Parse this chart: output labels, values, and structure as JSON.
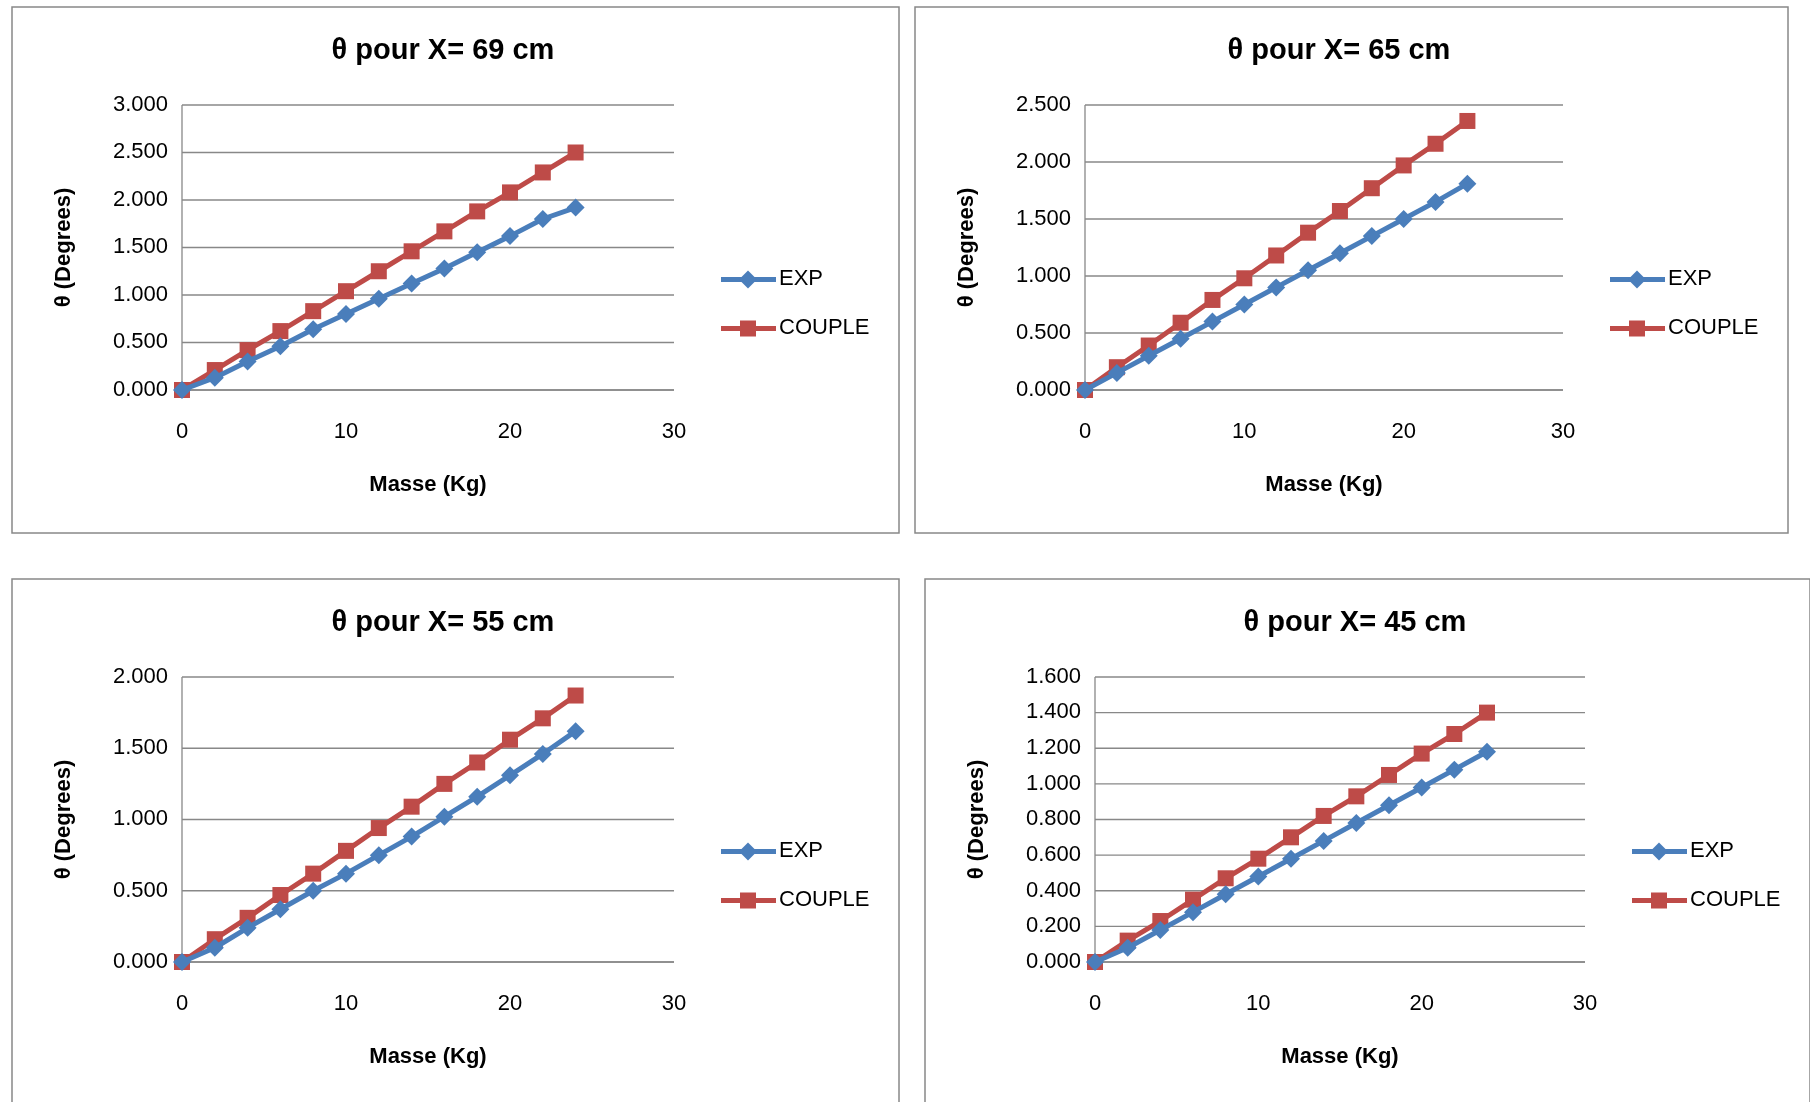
{
  "chart_data": [
    {
      "type": "line",
      "title": "θ pour X= 69 cm",
      "xlabel": "Masse (Kg)",
      "ylabel": "θ (Degrees)",
      "x": [
        0,
        2,
        4,
        6,
        8,
        10,
        12,
        14,
        16,
        18,
        20,
        22,
        24
      ],
      "xlim": [
        0,
        30
      ],
      "xticks": [
        0,
        10,
        20,
        30
      ],
      "ylim": [
        0,
        3
      ],
      "yticks": [
        {
          "value": 0,
          "label": "0.000"
        },
        {
          "value": 0.5,
          "label": "0.500"
        },
        {
          "value": 1,
          "label": "1.000"
        },
        {
          "value": 1.5,
          "label": "1.500"
        },
        {
          "value": 2,
          "label": "2.000"
        },
        {
          "value": 2.5,
          "label": "2.500"
        },
        {
          "value": 3,
          "label": "3.000"
        }
      ],
      "grid": "y",
      "legend": "right",
      "line_style": "solid",
      "series": [
        {
          "name": "EXP",
          "color": "#4a7ebb",
          "marker": "diamond",
          "values": [
            0,
            0.13,
            0.3,
            0.46,
            0.64,
            0.8,
            0.96,
            1.12,
            1.28,
            1.45,
            1.62,
            1.8,
            1.92
          ]
        },
        {
          "name": "COUPLE",
          "color": "#be4b48",
          "marker": "square",
          "values": [
            0,
            0.21,
            0.42,
            0.62,
            0.83,
            1.04,
            1.25,
            1.46,
            1.67,
            1.88,
            2.08,
            2.29,
            2.5
          ]
        }
      ]
    },
    {
      "type": "line",
      "title": "θ pour X= 65 cm",
      "xlabel": "Masse (Kg)",
      "ylabel": "θ (Degrees)",
      "x": [
        0,
        2,
        4,
        6,
        8,
        10,
        12,
        14,
        16,
        18,
        20,
        22,
        24
      ],
      "xlim": [
        0,
        30
      ],
      "xticks": [
        0,
        10,
        20,
        30
      ],
      "ylim": [
        0,
        2.5
      ],
      "yticks": [
        {
          "value": 0,
          "label": "0.000"
        },
        {
          "value": 0.5,
          "label": "0.500"
        },
        {
          "value": 1,
          "label": "1.000"
        },
        {
          "value": 1.5,
          "label": "1.500"
        },
        {
          "value": 2,
          "label": "2.000"
        },
        {
          "value": 2.5,
          "label": "2.500"
        }
      ],
      "grid": "y",
      "legend": "right",
      "line_style": "solid",
      "series": [
        {
          "name": "EXP",
          "color": "#4a7ebb",
          "marker": "diamond",
          "values": [
            0,
            0.15,
            0.3,
            0.45,
            0.6,
            0.75,
            0.9,
            1.05,
            1.2,
            1.35,
            1.5,
            1.65,
            1.81
          ]
        },
        {
          "name": "COUPLE",
          "color": "#be4b48",
          "marker": "square",
          "values": [
            0,
            0.2,
            0.39,
            0.59,
            0.79,
            0.98,
            1.18,
            1.38,
            1.57,
            1.77,
            1.97,
            2.16,
            2.36
          ]
        }
      ]
    },
    {
      "type": "line",
      "title": "θ pour X= 55 cm",
      "xlabel": "Masse (Kg)",
      "ylabel": "θ (Degrees)",
      "x": [
        0,
        2,
        4,
        6,
        8,
        10,
        12,
        14,
        16,
        18,
        20,
        22,
        24
      ],
      "xlim": [
        0,
        30
      ],
      "xticks": [
        0,
        10,
        20,
        30
      ],
      "ylim": [
        0,
        2
      ],
      "yticks": [
        {
          "value": 0,
          "label": "0.000"
        },
        {
          "value": 0.5,
          "label": "0.500"
        },
        {
          "value": 1,
          "label": "1.000"
        },
        {
          "value": 1.5,
          "label": "1.500"
        },
        {
          "value": 2,
          "label": "2.000"
        }
      ],
      "grid": "y",
      "legend": "right",
      "line_style": "solid",
      "series": [
        {
          "name": "EXP",
          "color": "#4a7ebb",
          "marker": "diamond",
          "values": [
            0,
            0.1,
            0.24,
            0.37,
            0.5,
            0.62,
            0.75,
            0.88,
            1.02,
            1.16,
            1.31,
            1.46,
            1.62
          ]
        },
        {
          "name": "COUPLE",
          "color": "#be4b48",
          "marker": "square",
          "values": [
            0,
            0.16,
            0.31,
            0.47,
            0.62,
            0.78,
            0.94,
            1.09,
            1.25,
            1.4,
            1.56,
            1.71,
            1.87
          ]
        }
      ]
    },
    {
      "type": "line",
      "title": "θ pour X= 45 cm",
      "xlabel": "Masse (Kg)",
      "ylabel": "θ (Degrees)",
      "x": [
        0,
        2,
        4,
        6,
        8,
        10,
        12,
        14,
        16,
        18,
        20,
        22,
        24
      ],
      "xlim": [
        0,
        30
      ],
      "xticks": [
        0,
        10,
        20,
        30
      ],
      "ylim": [
        0,
        1.6
      ],
      "yticks": [
        {
          "value": 0,
          "label": "0.000"
        },
        {
          "value": 0.2,
          "label": "0.200"
        },
        {
          "value": 0.4,
          "label": "0.400"
        },
        {
          "value": 0.6,
          "label": "0.600"
        },
        {
          "value": 0.8,
          "label": "0.800"
        },
        {
          "value": 1,
          "label": "1.000"
        },
        {
          "value": 1.2,
          "label": "1.200"
        },
        {
          "value": 1.4,
          "label": "1.400"
        },
        {
          "value": 1.6,
          "label": "1.600"
        }
      ],
      "grid": "y",
      "legend": "right",
      "line_style": "solid",
      "series": [
        {
          "name": "EXP",
          "color": "#4a7ebb",
          "marker": "diamond",
          "values": [
            0,
            0.08,
            0.18,
            0.28,
            0.38,
            0.48,
            0.58,
            0.68,
            0.78,
            0.88,
            0.98,
            1.08,
            1.18
          ]
        },
        {
          "name": "COUPLE",
          "color": "#be4b48",
          "marker": "square",
          "values": [
            0,
            0.12,
            0.23,
            0.35,
            0.47,
            0.58,
            0.7,
            0.82,
            0.93,
            1.05,
            1.17,
            1.28,
            1.4
          ]
        }
      ]
    }
  ]
}
